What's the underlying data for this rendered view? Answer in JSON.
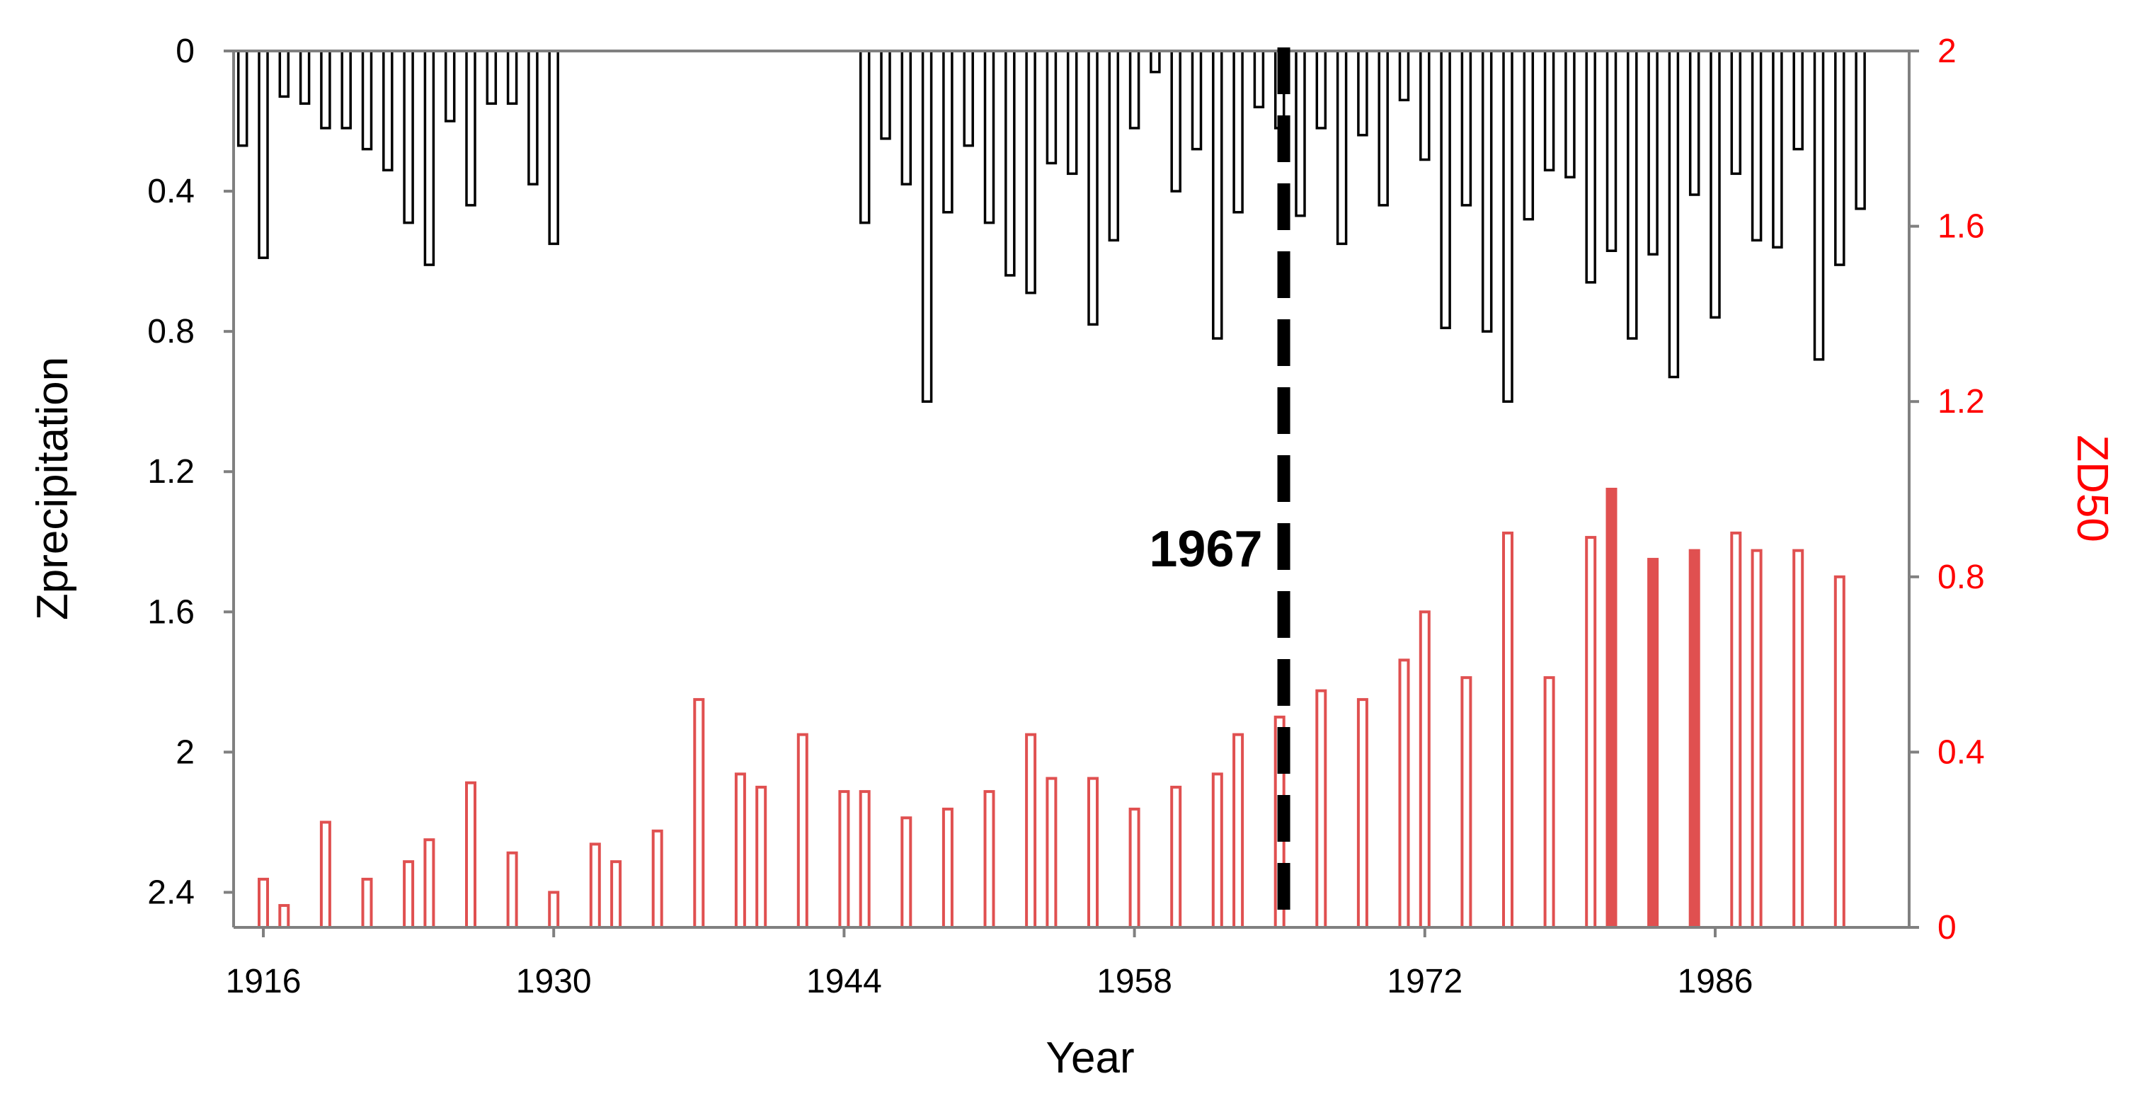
{
  "chart_data": {
    "type": "bar",
    "xlabel": "Year",
    "x_ticks": [
      "1916",
      "1930",
      "1944",
      "1958",
      "1972",
      "1986"
    ],
    "y_left": {
      "label": "Zprecipitation",
      "inverted": true,
      "lim": [
        0,
        2.5
      ],
      "ticks": [
        "0",
        "0.4",
        "0.8",
        "1.2",
        "1.6",
        "2",
        "2.4"
      ]
    },
    "y_right": {
      "label": "ZD50",
      "lim": [
        0,
        2
      ],
      "ticks": [
        "0",
        "0.4",
        "0.8",
        "1.2",
        "1.6",
        "2"
      ]
    },
    "colors": {
      "precip_outline": "#000000",
      "zd50_bar": "#e05050",
      "right_axis": "#ff0000",
      "axis_line": "#808080",
      "threshold_line": "#000000"
    },
    "annotation": {
      "text": "1967",
      "year": 1967
    },
    "series": [
      {
        "axis": "left",
        "style": "outline",
        "points": [
          [
            1915,
            0.27
          ],
          [
            1916,
            0.59
          ],
          [
            1917,
            0.13
          ],
          [
            1918,
            0.15
          ],
          [
            1919,
            0.22
          ],
          [
            1920,
            0.22
          ],
          [
            1921,
            0.28
          ],
          [
            1922,
            0.34
          ],
          [
            1923,
            0.49
          ],
          [
            1924,
            0.61
          ],
          [
            1925,
            0.2
          ],
          [
            1926,
            0.44
          ],
          [
            1927,
            0.15
          ],
          [
            1928,
            0.15
          ],
          [
            1929,
            0.38
          ],
          [
            1930,
            0.55
          ],
          [
            1945,
            0.49
          ],
          [
            1946,
            0.25
          ],
          [
            1947,
            0.38
          ],
          [
            1948,
            1.0
          ],
          [
            1949,
            0.46
          ],
          [
            1950,
            0.27
          ],
          [
            1951,
            0.49
          ],
          [
            1952,
            0.64
          ],
          [
            1953,
            0.69
          ],
          [
            1954,
            0.32
          ],
          [
            1955,
            0.35
          ],
          [
            1956,
            0.78
          ],
          [
            1957,
            0.54
          ],
          [
            1958,
            0.22
          ],
          [
            1959,
            0.06
          ],
          [
            1960,
            0.4
          ],
          [
            1961,
            0.28
          ],
          [
            1962,
            0.82
          ],
          [
            1963,
            0.46
          ],
          [
            1964,
            0.16
          ],
          [
            1965,
            0.22
          ],
          [
            1966,
            0.47
          ],
          [
            1967,
            0.22
          ],
          [
            1968,
            0.55
          ],
          [
            1969,
            0.24
          ],
          [
            1970,
            0.44
          ],
          [
            1971,
            0.14
          ],
          [
            1972,
            0.31
          ],
          [
            1973,
            0.79
          ],
          [
            1974,
            0.44
          ],
          [
            1975,
            0.8
          ],
          [
            1976,
            1.0
          ],
          [
            1977,
            0.48
          ],
          [
            1978,
            0.34
          ],
          [
            1979,
            0.36
          ],
          [
            1980,
            0.66
          ],
          [
            1981,
            0.57
          ],
          [
            1982,
            0.82
          ],
          [
            1983,
            0.58
          ],
          [
            1984,
            0.93
          ],
          [
            1985,
            0.41
          ],
          [
            1986,
            0.76
          ],
          [
            1987,
            0.35
          ],
          [
            1988,
            0.54
          ],
          [
            1989,
            0.56
          ],
          [
            1990,
            0.28
          ],
          [
            1991,
            0.88
          ],
          [
            1992,
            0.61
          ],
          [
            1993,
            0.45
          ]
        ]
      },
      {
        "axis": "right",
        "style": "filled-outline",
        "points": [
          [
            1916,
            0.11
          ],
          [
            1917,
            0.05
          ],
          [
            1919,
            0.24
          ],
          [
            1921,
            0.11
          ],
          [
            1923,
            0.15
          ],
          [
            1924,
            0.2
          ],
          [
            1926,
            0.33
          ],
          [
            1928,
            0.17
          ],
          [
            1930,
            0.08
          ],
          [
            1932,
            0.19
          ],
          [
            1933,
            0.15
          ],
          [
            1935,
            0.22
          ],
          [
            1937,
            0.52
          ],
          [
            1939,
            0.35
          ],
          [
            1940,
            0.32
          ],
          [
            1942,
            0.44
          ],
          [
            1944,
            0.31
          ],
          [
            1945,
            0.31
          ],
          [
            1947,
            0.25
          ],
          [
            1949,
            0.27
          ],
          [
            1951,
            0.31
          ],
          [
            1953,
            0.44
          ],
          [
            1954,
            0.34
          ],
          [
            1956,
            0.34
          ],
          [
            1958,
            0.27
          ],
          [
            1960,
            0.32
          ],
          [
            1962,
            0.35
          ],
          [
            1963,
            0.44
          ],
          [
            1965,
            0.48
          ],
          [
            1967,
            0.54
          ],
          [
            1969,
            0.52
          ],
          [
            1971,
            0.61
          ],
          [
            1972,
            0.72
          ],
          [
            1974,
            0.57
          ],
          [
            1976,
            0.9
          ],
          [
            1978,
            0.57
          ],
          [
            1980,
            0.89
          ],
          [
            1981,
            1.0
          ],
          [
            1983,
            0.84
          ],
          [
            1985,
            0.86
          ],
          [
            1987,
            0.9
          ],
          [
            1988,
            0.86
          ],
          [
            1990,
            0.86
          ],
          [
            1992,
            0.8
          ]
        ]
      }
    ]
  }
}
